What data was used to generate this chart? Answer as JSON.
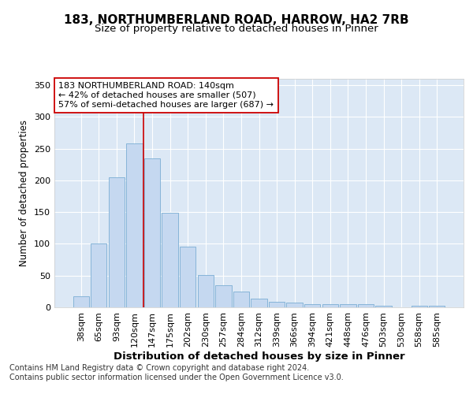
{
  "title1": "183, NORTHUMBERLAND ROAD, HARROW, HA2 7RB",
  "title2": "Size of property relative to detached houses in Pinner",
  "xlabel": "Distribution of detached houses by size in Pinner",
  "ylabel": "Number of detached properties",
  "categories": [
    "38sqm",
    "65sqm",
    "93sqm",
    "120sqm",
    "147sqm",
    "175sqm",
    "202sqm",
    "230sqm",
    "257sqm",
    "284sqm",
    "312sqm",
    "339sqm",
    "366sqm",
    "394sqm",
    "421sqm",
    "448sqm",
    "476sqm",
    "503sqm",
    "530sqm",
    "558sqm",
    "585sqm"
  ],
  "values": [
    18,
    100,
    205,
    258,
    235,
    149,
    95,
    51,
    35,
    25,
    14,
    9,
    7,
    5,
    5,
    5,
    5,
    2,
    0,
    2,
    2
  ],
  "bar_color": "#c5d8f0",
  "bar_edge_color": "#7aadd4",
  "vline_x": 3.5,
  "vline_color": "#cc0000",
  "annotation_text": "183 NORTHUMBERLAND ROAD: 140sqm\n← 42% of detached houses are smaller (507)\n57% of semi-detached houses are larger (687) →",
  "annotation_box_color": "#ffffff",
  "annotation_box_edge_color": "#cc0000",
  "ylim": [
    0,
    360
  ],
  "yticks": [
    0,
    50,
    100,
    150,
    200,
    250,
    300,
    350
  ],
  "bg_color": "#ffffff",
  "plot_bg_color": "#dce8f5",
  "footer": "Contains HM Land Registry data © Crown copyright and database right 2024.\nContains public sector information licensed under the Open Government Licence v3.0.",
  "title1_fontsize": 11,
  "title2_fontsize": 9.5,
  "xlabel_fontsize": 9.5,
  "ylabel_fontsize": 8.5,
  "tick_fontsize": 8,
  "annotation_fontsize": 8,
  "footer_fontsize": 7
}
